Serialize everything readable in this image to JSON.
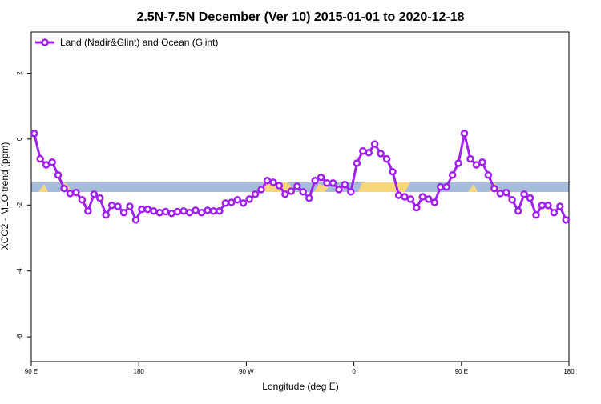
{
  "chart_data": {
    "type": "line",
    "title": "2.5N-7.5N December (Ver 10)   2015-01-01 to 2020-12-18",
    "x_label": "Longitude (deg E)",
    "y_label": "XCO2 - MLO trend (ppm)",
    "xlim": [
      90,
      540
    ],
    "ylim": [
      -6.75,
      3.25
    ],
    "xticks": [
      {
        "value": 90,
        "label": "90 E"
      },
      {
        "value": 180,
        "label": "180"
      },
      {
        "value": 270,
        "label": "90 W"
      },
      {
        "value": 360,
        "label": "0"
      },
      {
        "value": 450,
        "label": "90 E"
      },
      {
        "value": 540,
        "label": "180"
      }
    ],
    "yticks": [
      2,
      0,
      -2,
      -4,
      -6
    ],
    "legend": "top-left",
    "x": [
      92.5,
      97.5,
      102.5,
      107.5,
      112.5,
      117.5,
      122.5,
      127.5,
      132.5,
      137.5,
      142.5,
      147.5,
      152.5,
      157.5,
      162.5,
      167.5,
      172.5,
      177.5,
      182.5,
      187.5,
      192.5,
      197.5,
      202.5,
      207.5,
      212.5,
      217.5,
      222.5,
      227.5,
      232.5,
      237.5,
      242.5,
      247.5,
      252.5,
      257.5,
      262.5,
      267.5,
      272.5,
      277.5,
      282.5,
      287.5,
      292.5,
      297.5,
      302.5,
      307.5,
      312.5,
      317.5,
      322.5,
      327.5,
      332.5,
      337.5,
      342.5,
      347.5,
      352.5,
      357.5,
      362.5,
      367.5,
      372.5,
      377.5,
      382.5,
      387.5,
      392.5,
      397.5,
      402.5,
      407.5,
      412.5,
      417.5,
      422.5,
      427.5,
      432.5,
      437.5,
      442.5,
      447.5,
      452.5,
      457.5,
      462.5,
      467.5,
      472.5,
      477.5,
      482.5,
      487.5,
      492.5,
      497.5,
      502.5,
      507.5,
      512.5,
      517.5,
      522.5,
      527.5,
      532.5,
      537.5
    ],
    "series": [
      {
        "name": "Land (Nadir&Glint) and Ocean (Glint)",
        "color": "#a020f0",
        "values": [
          0.17,
          -0.6,
          -0.78,
          -0.7,
          -1.09,
          -1.5,
          -1.65,
          -1.62,
          -1.84,
          -2.18,
          -1.67,
          -1.79,
          -2.3,
          -2.01,
          -2.04,
          -2.23,
          -2.04,
          -2.45,
          -2.13,
          -2.13,
          -2.18,
          -2.23,
          -2.2,
          -2.25,
          -2.2,
          -2.18,
          -2.23,
          -2.16,
          -2.23,
          -2.16,
          -2.18,
          -2.18,
          -1.94,
          -1.92,
          -1.84,
          -1.94,
          -1.82,
          -1.67,
          -1.53,
          -1.26,
          -1.31,
          -1.41,
          -1.67,
          -1.58,
          -1.43,
          -1.6,
          -1.79,
          -1.26,
          -1.16,
          -1.33,
          -1.33,
          -1.53,
          -1.38,
          -1.6,
          -0.73,
          -0.36,
          -0.41,
          -0.15,
          -0.44,
          -0.6,
          -0.99,
          -1.7,
          -1.75,
          -1.82,
          -2.08,
          -1.75,
          -1.82,
          -1.92,
          -1.45,
          -1.45,
          -1.09,
          -0.73,
          0.17,
          -0.6,
          -0.78,
          -0.7,
          -1.09,
          -1.5,
          -1.65,
          -1.62,
          -1.84,
          -2.18,
          -1.67,
          -1.79,
          -2.3,
          -2.01,
          -2.01,
          -2.23,
          -2.04,
          -2.45
        ]
      }
    ]
  }
}
